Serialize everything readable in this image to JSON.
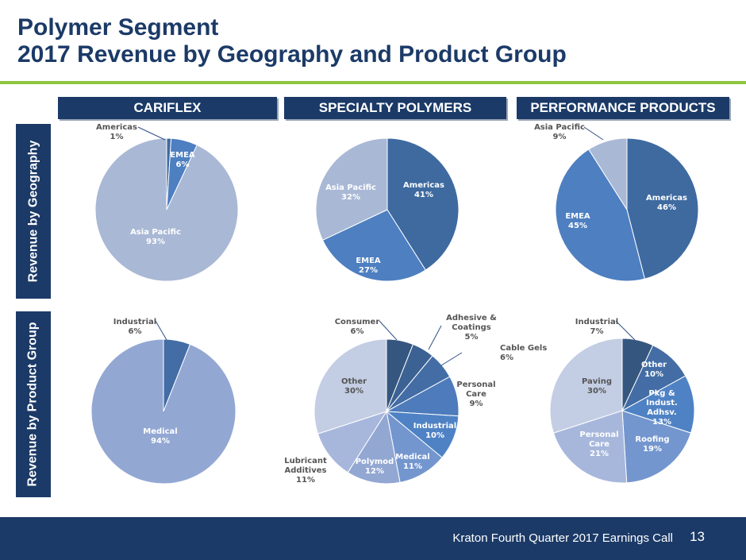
{
  "title": {
    "line1": "Polymer Segment",
    "line2": "2017 Revenue by Geography and Product Group"
  },
  "columns": [
    "CARIFLEX",
    "SPECIALTY POLYMERS",
    "PERFORMANCE PRODUCTS"
  ],
  "rows": [
    "Revenue by Geography",
    "Revenue by Product Group"
  ],
  "footer": {
    "text": "Kraton Fourth Quarter 2017 Earnings Call",
    "page": "13"
  },
  "colors": {
    "navy": "#1b3a67",
    "green": "#8cc63f"
  },
  "chart_data": [
    {
      "type": "pie",
      "column": "CARIFLEX",
      "row": "Revenue by Geography",
      "slices": [
        {
          "label": "Americas",
          "value": 1,
          "display": "1%",
          "color": "#3e6aa0"
        },
        {
          "label": "EMEA",
          "value": 6,
          "display": "6%",
          "color": "#4d7fc1"
        },
        {
          "label": "Asia Pacific",
          "value": 93,
          "display": "93%",
          "color": "#a9b8d5"
        }
      ]
    },
    {
      "type": "pie",
      "column": "SPECIALTY POLYMERS",
      "row": "Revenue by Geography",
      "slices": [
        {
          "label": "Americas",
          "value": 41,
          "display": "41%",
          "color": "#3e6aa0"
        },
        {
          "label": "EMEA",
          "value": 27,
          "display": "27%",
          "color": "#4d7fc1"
        },
        {
          "label": "Asia Pacific",
          "value": 32,
          "display": "32%",
          "color": "#a9b8d5"
        }
      ]
    },
    {
      "type": "pie",
      "column": "PERFORMANCE PRODUCTS",
      "row": "Revenue by Geography",
      "slices": [
        {
          "label": "Americas",
          "value": 46,
          "display": "46%",
          "color": "#3e6aa0"
        },
        {
          "label": "EMEA",
          "value": 45,
          "display": "45%",
          "color": "#4d7fc1"
        },
        {
          "label": "Asia Pacific",
          "value": 9,
          "display": "9%",
          "color": "#a9b8d5"
        }
      ]
    },
    {
      "type": "pie",
      "column": "CARIFLEX",
      "row": "Revenue by Product Group",
      "slices": [
        {
          "label": "Industrial",
          "value": 6,
          "display": "6%",
          "color": "#436da4"
        },
        {
          "label": "Medical",
          "value": 94,
          "display": "94%",
          "color": "#93a7d3"
        }
      ]
    },
    {
      "type": "pie",
      "column": "SPECIALTY POLYMERS",
      "row": "Revenue by Product Group",
      "slices": [
        {
          "label": "Consumer",
          "value": 6,
          "display": "6%",
          "color": "#35577f"
        },
        {
          "label": "Adhesive & Coatings",
          "value": 5,
          "display": "5%",
          "color": "#3c6294"
        },
        {
          "label": "Cable Gels",
          "value": 6,
          "display": "6%",
          "color": "#436da4"
        },
        {
          "label": "Personal Care",
          "value": 9,
          "display": "9%",
          "color": "#4d7bbb"
        },
        {
          "label": "Industrial",
          "value": 10,
          "display": "10%",
          "color": "#4f82c4"
        },
        {
          "label": "Medical",
          "value": 11,
          "display": "11%",
          "color": "#7496cf"
        },
        {
          "label": "Polymod",
          "value": 12,
          "display": "12%",
          "color": "#93a7d3"
        },
        {
          "label": "Lubricant Additives",
          "value": 11,
          "display": "11%",
          "color": "#a7b7dc"
        },
        {
          "label": "Other",
          "value": 30,
          "display": "30%",
          "color": "#c3cde4"
        }
      ]
    },
    {
      "type": "pie",
      "column": "PERFORMANCE PRODUCTS",
      "row": "Revenue by Product Group",
      "slices": [
        {
          "label": "Industrial",
          "value": 7,
          "display": "7%",
          "color": "#35577f"
        },
        {
          "label": "Other",
          "value": 10,
          "display": "10%",
          "color": "#436da4"
        },
        {
          "label": "Pkg & Indust. Adhsv.",
          "value": 13,
          "display": "13%",
          "color": "#4f82c4"
        },
        {
          "label": "Roofing",
          "value": 19,
          "display": "19%",
          "color": "#7496cf"
        },
        {
          "label": "Personal Care",
          "value": 21,
          "display": "21%",
          "color": "#a7b7dc"
        },
        {
          "label": "Paving",
          "value": 30,
          "display": "30%",
          "color": "#c3cde4"
        }
      ]
    }
  ]
}
